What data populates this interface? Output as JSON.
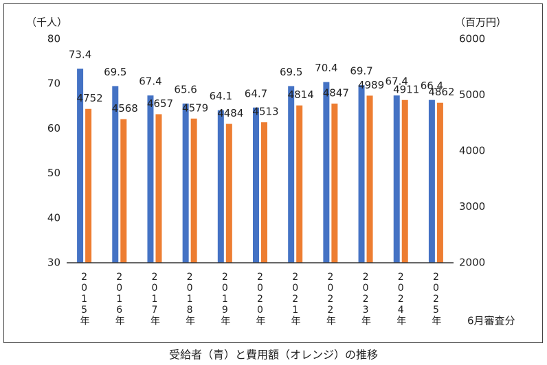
{
  "chart_data": {
    "type": "bar",
    "title": "受給者（青）と費用額（オレンジ）の推移",
    "y_label": "（千人）",
    "y2_label": "（百万円）",
    "note": "6月審査分",
    "categories": [
      "2015年",
      "2016年",
      "2017年",
      "2018年",
      "2019年",
      "2020年",
      "2021年",
      "2022年",
      "2023年",
      "2024年",
      "2025年"
    ],
    "series": [
      {
        "color": "#4472c4",
        "values": [
          73.4,
          69.5,
          67.4,
          65.6,
          64.1,
          64.7,
          69.5,
          70.4,
          69.7,
          67.4,
          66.4
        ]
      },
      {
        "color": "#ed7d31",
        "axis": "y2",
        "values": [
          4752,
          4568,
          4657,
          4579,
          4484,
          4513,
          4814,
          4847,
          4989,
          4911,
          4862
        ]
      }
    ],
    "ylim": [
      30,
      80
    ],
    "yticks": [
      30,
      40,
      50,
      60,
      70,
      80
    ],
    "y2lim": [
      2000,
      6000
    ],
    "y2ticks": [
      2000,
      3000,
      4000,
      5000,
      6000
    ]
  }
}
